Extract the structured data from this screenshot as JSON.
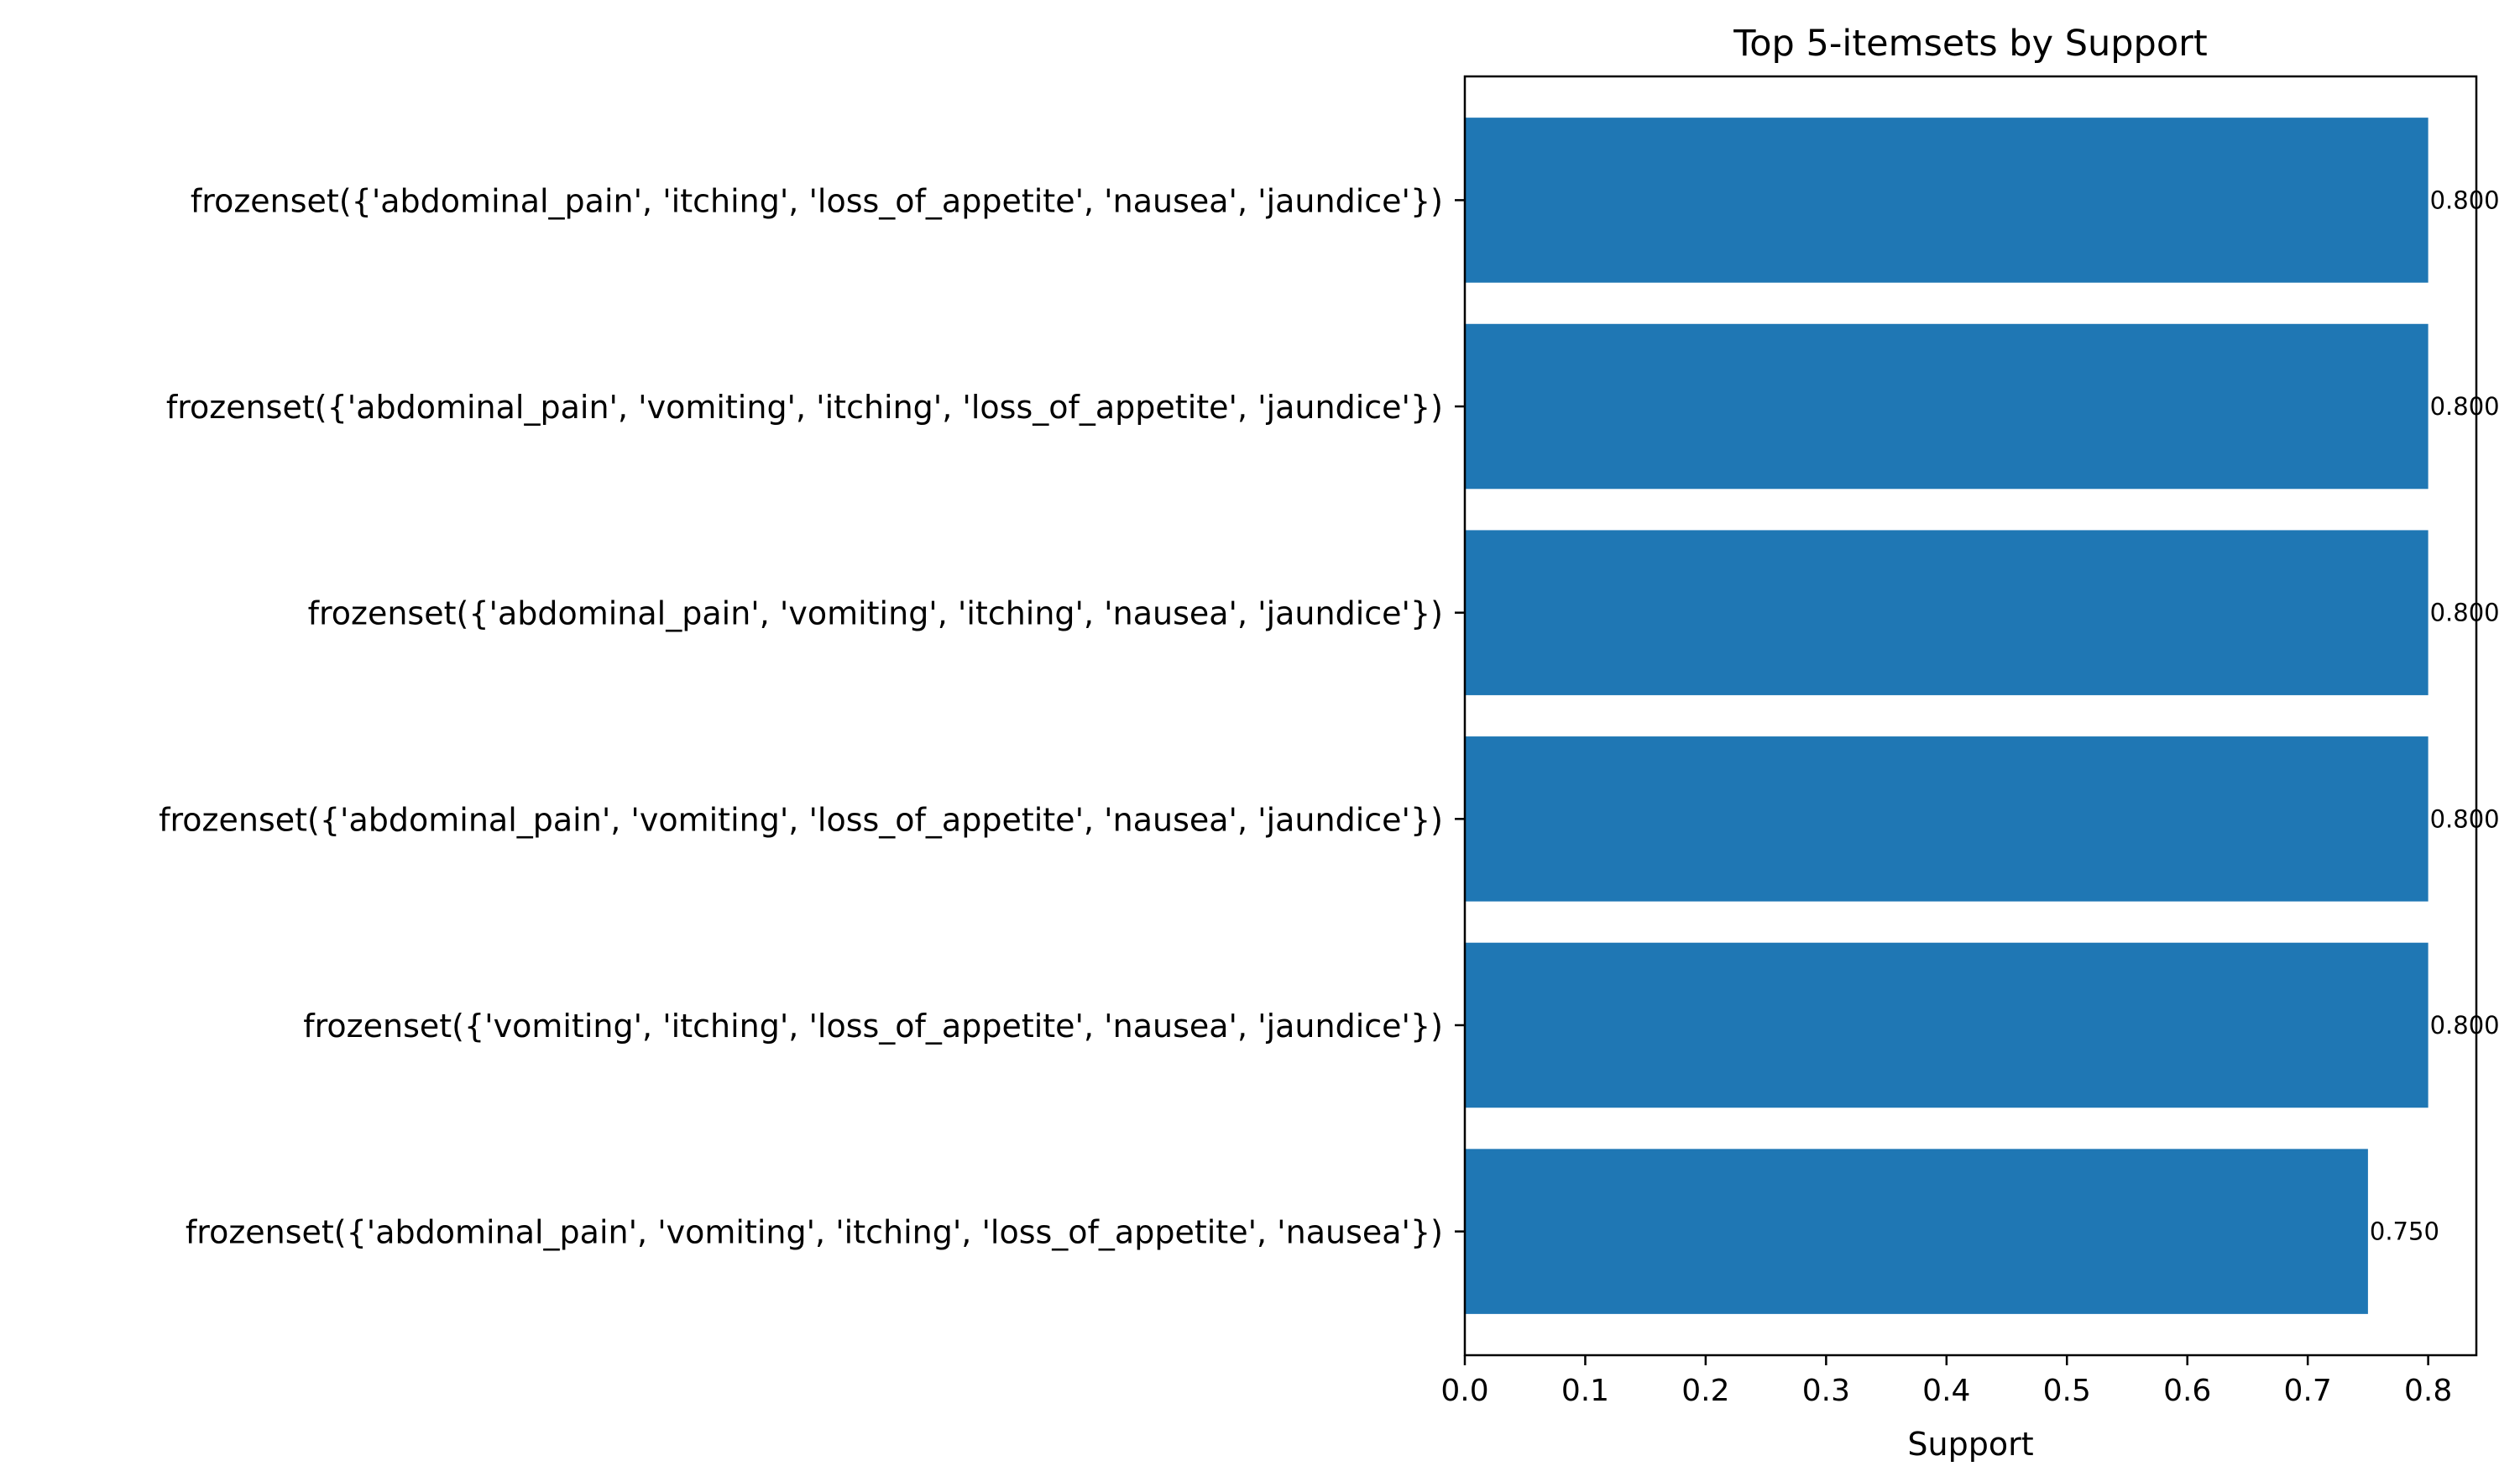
{
  "chart_data": {
    "type": "bar",
    "orientation": "horizontal",
    "title": "Top 5-itemsets by Support",
    "xlabel": "Support",
    "ylabel": "",
    "xlim": [
      0,
      0.84
    ],
    "x_ticks": [
      "0.0",
      "0.1",
      "0.2",
      "0.3",
      "0.4",
      "0.5",
      "0.6",
      "0.7",
      "0.8"
    ],
    "x_tick_values": [
      0,
      0.1,
      0.2,
      0.3,
      0.4,
      0.5,
      0.6,
      0.7,
      0.8
    ],
    "bar_color": "#1f77b4",
    "grid": false,
    "legend": "none",
    "categories": [
      "frozenset({'abdominal_pain', 'itching', 'loss_of_appetite', 'nausea', 'jaundice'})",
      "frozenset({'abdominal_pain', 'vomiting', 'itching', 'loss_of_appetite', 'jaundice'})",
      "frozenset({'abdominal_pain', 'vomiting', 'itching', 'nausea', 'jaundice'})",
      "frozenset({'abdominal_pain', 'vomiting', 'loss_of_appetite', 'nausea', 'jaundice'})",
      "frozenset({'vomiting', 'itching', 'loss_of_appetite', 'nausea', 'jaundice'})",
      "frozenset({'abdominal_pain', 'vomiting', 'itching', 'loss_of_appetite', 'nausea'})"
    ],
    "values": [
      0.8,
      0.8,
      0.8,
      0.8,
      0.8,
      0.75
    ],
    "value_labels": [
      "0.800",
      "0.800",
      "0.800",
      "0.800",
      "0.800",
      "0.750"
    ]
  }
}
